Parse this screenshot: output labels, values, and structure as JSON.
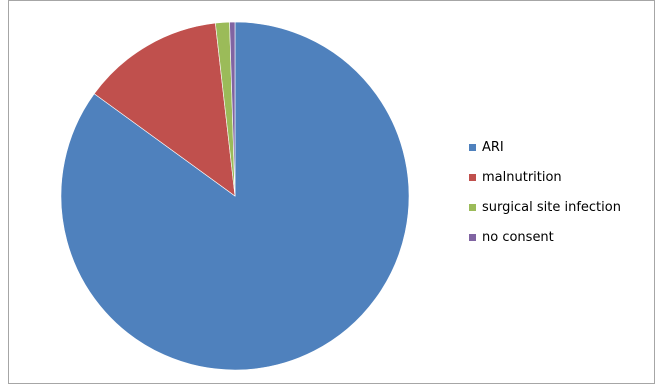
{
  "chart_data": {
    "type": "pie",
    "title": "",
    "start_angle_deg": 0,
    "direction": "clockwise",
    "legend_position": "right",
    "slices": [
      {
        "label": "ARI",
        "value": 85.0,
        "color": "#4f81bd"
      },
      {
        "label": "malnutrition",
        "value": 13.2,
        "color": "#c0504d"
      },
      {
        "label": "surgical site infection",
        "value": 1.3,
        "color": "#9bbb59"
      },
      {
        "label": "no consent",
        "value": 0.5,
        "color": "#8064a2"
      }
    ]
  }
}
